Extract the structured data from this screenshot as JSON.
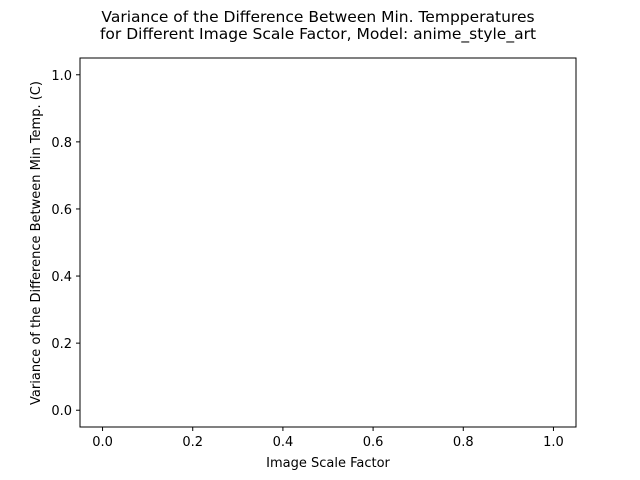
{
  "chart_data": {
    "type": "line",
    "title": "Variance of the Difference Between Min. Tempperatures\nfor Different Image Scale Factor, Model: anime_style_art",
    "title_lines": [
      "Variance of the Difference Between Min. Tempperatures",
      "for Different Image Scale Factor, Model: anime_style_art"
    ],
    "xlabel": "Image Scale Factor",
    "ylabel": "Variance of the Difference Between Min Temp. (C)",
    "xlim": [
      -0.05,
      1.05
    ],
    "ylim": [
      -0.05,
      1.05
    ],
    "xticks": [
      "0.0",
      "0.2",
      "0.4",
      "0.6",
      "0.8",
      "1.0"
    ],
    "yticks": [
      "0.0",
      "0.2",
      "0.4",
      "0.6",
      "0.8",
      "1.0"
    ],
    "xtick_values": [
      0.0,
      0.2,
      0.4,
      0.6,
      0.8,
      1.0
    ],
    "ytick_values": [
      0.0,
      0.2,
      0.4,
      0.6,
      0.8,
      1.0
    ],
    "series": [],
    "grid": false,
    "legend": "none"
  }
}
